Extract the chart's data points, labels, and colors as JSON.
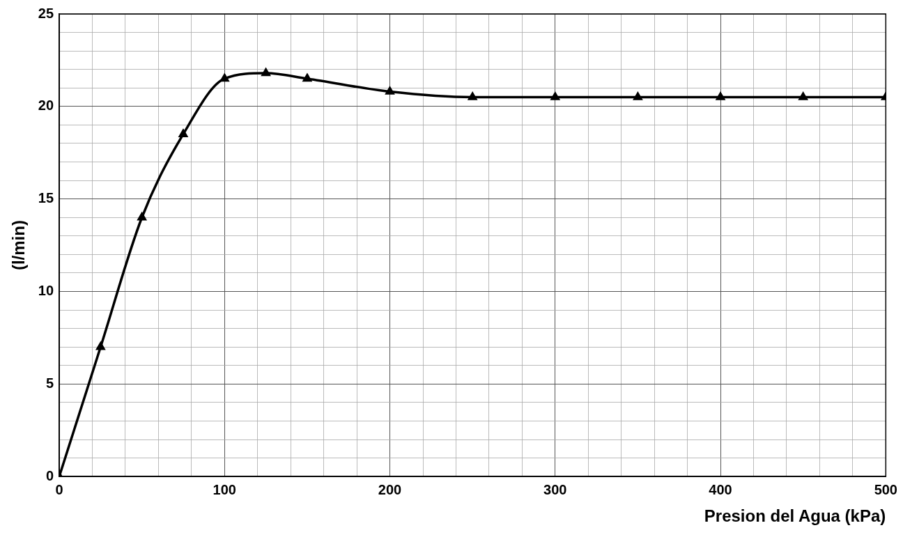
{
  "chart_data": {
    "type": "line",
    "xlabel": "Presion del Agua (kPa)",
    "ylabel": "(l/min)",
    "x": [
      0,
      25,
      50,
      75,
      100,
      125,
      150,
      200,
      250,
      300,
      350,
      400,
      450,
      500
    ],
    "series": [
      {
        "color": "#000000",
        "values": [
          0,
          7,
          14,
          18.5,
          21.5,
          21.8,
          21.5,
          20.8,
          20.5,
          20.5,
          20.5,
          20.5,
          20.5,
          20.5
        ]
      }
    ],
    "xlim": [
      0,
      500
    ],
    "xticks": [
      0,
      {
        "value": 20,
        "label": null
      },
      {
        "value": 40,
        "label": null
      },
      {
        "value": 60,
        "label": null
      },
      {
        "value": 80,
        "label": null
      },
      100,
      {
        "value": 120,
        "label": null
      },
      {
        "value": 140,
        "label": null
      },
      {
        "value": 160,
        "label": null
      },
      {
        "value": 180,
        "label": null
      },
      200,
      {
        "value": 220,
        "label": null
      },
      {
        "value": 240,
        "label": null
      },
      {
        "value": 260,
        "label": null
      },
      {
        "value": 280,
        "label": null
      },
      300,
      {
        "value": 320,
        "label": null
      },
      {
        "value": 340,
        "label": null
      },
      {
        "value": 360,
        "label": null
      },
      {
        "value": 380,
        "label": null
      },
      400,
      {
        "value": 420,
        "label": null
      },
      {
        "value": 440,
        "label": null
      },
      {
        "value": 460,
        "label": null
      },
      {
        "value": 480,
        "label": null
      },
      500
    ],
    "ylim": [
      0,
      25
    ],
    "yticks": [
      0,
      {
        "value": 1,
        "label": null
      },
      {
        "value": 2,
        "label": null
      },
      {
        "value": 3,
        "label": null
      },
      {
        "value": 4,
        "label": null
      },
      5,
      {
        "value": 6,
        "label": null
      },
      {
        "value": 7,
        "label": null
      },
      {
        "value": 8,
        "label": null
      },
      {
        "value": 9,
        "label": null
      },
      10,
      {
        "value": 11,
        "label": null
      },
      {
        "value": 12,
        "label": null
      },
      {
        "value": 13,
        "label": null
      },
      {
        "value": 14,
        "label": null
      },
      15,
      {
        "value": 16,
        "label": null
      },
      {
        "value": 17,
        "label": null
      },
      {
        "value": 18,
        "label": null
      },
      {
        "value": 19,
        "label": null
      },
      20,
      {
        "value": 21,
        "label": null
      },
      {
        "value": 22,
        "label": null
      },
      {
        "value": 23,
        "label": null
      },
      {
        "value": 24,
        "label": null
      },
      25
    ],
    "grid": true,
    "legend": false,
    "marker": "triangle",
    "line_style": "solid"
  }
}
